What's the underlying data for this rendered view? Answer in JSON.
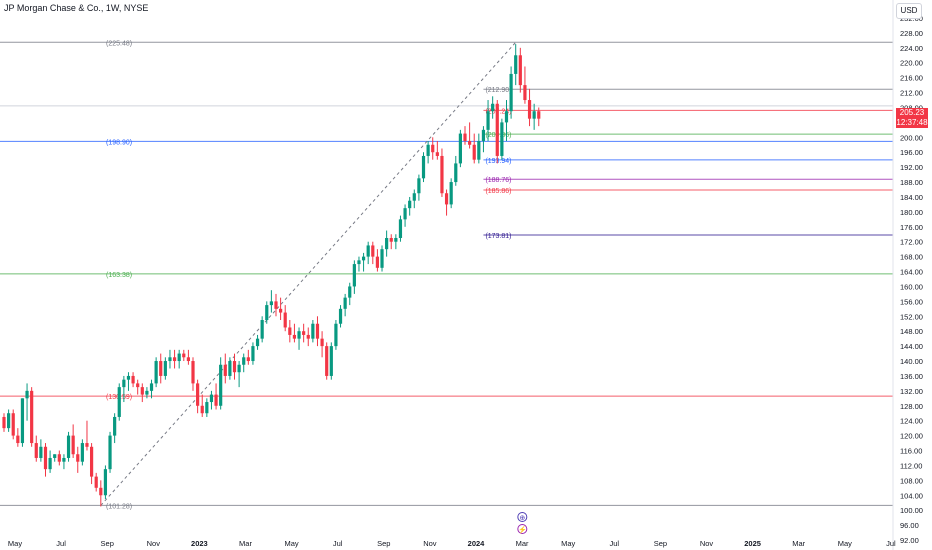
{
  "header": {
    "title": "JP Morgan Chase & Co., 1W, NYSE",
    "currency_button": "USD"
  },
  "last_price": {
    "value": "205.23",
    "countdown": "12:37:48",
    "price": 205.23,
    "color": "#f23645"
  },
  "colors": {
    "up": "#089981",
    "down": "#f23645",
    "grid": "#e0e3eb",
    "axis_text": "#131722",
    "event_icon": "#4f3fb5",
    "dividend_icon": "#9c27b0"
  },
  "event_markers": [
    {
      "icon": "earnings-icon",
      "glyph": "⊕"
    },
    {
      "icon": "dividend-icon",
      "glyph": "⚡"
    }
  ],
  "chart_data": {
    "type": "candlestick",
    "title": "JP Morgan Chase & Co., 1W, NYSE",
    "y_range": [
      96,
      232
    ],
    "price_ticks": [
      232,
      228,
      224,
      220,
      216,
      212,
      208,
      204,
      200,
      196,
      192,
      188,
      184,
      180,
      176,
      172,
      168,
      164,
      160,
      156,
      152,
      148,
      144,
      140,
      136,
      132,
      128,
      124,
      120,
      116,
      112,
      108,
      104,
      100,
      96,
      92
    ],
    "time_labels": [
      {
        "label": "May",
        "bold": false
      },
      {
        "label": "Jul",
        "bold": false
      },
      {
        "label": "Sep",
        "bold": false
      },
      {
        "label": "Nov",
        "bold": false
      },
      {
        "label": "2023",
        "bold": true
      },
      {
        "label": "Mar",
        "bold": false
      },
      {
        "label": "May",
        "bold": false
      },
      {
        "label": "Jul",
        "bold": false
      },
      {
        "label": "Sep",
        "bold": false
      },
      {
        "label": "Nov",
        "bold": false
      },
      {
        "label": "2024",
        "bold": true
      },
      {
        "label": "Mar",
        "bold": false
      },
      {
        "label": "May",
        "bold": false
      },
      {
        "label": "Jul",
        "bold": false
      },
      {
        "label": "Sep",
        "bold": false
      },
      {
        "label": "Nov",
        "bold": false
      },
      {
        "label": "2025",
        "bold": true
      },
      {
        "label": "Mar",
        "bold": false
      },
      {
        "label": "May",
        "bold": false
      },
      {
        "label": "Jul",
        "bold": false
      }
    ],
    "levels": [
      {
        "label": "(225.48)",
        "price": 225.48,
        "color": "#787b86",
        "span": "full"
      },
      {
        "label": "(198.90)",
        "price": 198.9,
        "color": "#2962ff",
        "span": "full"
      },
      {
        "label": "(163.38)",
        "price": 163.38,
        "color": "#4caf50",
        "span": "full"
      },
      {
        "label": "(130.59)",
        "price": 130.59,
        "color": "#f23645",
        "span": "full"
      },
      {
        "label": "(101.28)",
        "price": 101.28,
        "color": "#787b86",
        "span": "full"
      },
      {
        "label": "(212.90)",
        "price": 212.9,
        "color": "#787b86",
        "span": "right"
      },
      {
        "label": "(207.24)",
        "price": 207.24,
        "color": "#f23645",
        "span": "right"
      },
      {
        "label": "(200.86)",
        "price": 200.86,
        "color": "#4caf50",
        "span": "right"
      },
      {
        "label": "(193.94)",
        "price": 193.94,
        "color": "#2962ff",
        "span": "right"
      },
      {
        "label": "(188.76)",
        "price": 188.76,
        "color": "#9c27b0",
        "span": "right"
      },
      {
        "label": "(185.86)",
        "price": 185.86,
        "color": "#f23645",
        "span": "right"
      },
      {
        "label": "(173.81)",
        "price": 173.81,
        "color": "#311b92",
        "span": "right"
      }
    ],
    "trend_line": {
      "from": 101.28,
      "to": 225.48
    },
    "candles": [
      [
        125,
        126,
        121,
        122
      ],
      [
        122,
        127,
        121,
        126
      ],
      [
        126,
        127,
        119,
        120
      ],
      [
        120,
        122,
        117,
        118
      ],
      [
        118,
        130,
        117,
        130
      ],
      [
        130,
        134,
        124,
        132
      ],
      [
        132,
        133,
        117,
        118
      ],
      [
        118,
        120,
        113,
        114
      ],
      [
        114,
        119,
        113,
        117
      ],
      [
        117,
        118,
        109,
        111
      ],
      [
        111,
        116,
        110,
        114
      ],
      [
        114,
        115,
        113,
        115
      ],
      [
        115,
        116,
        112,
        113
      ],
      [
        113,
        115,
        111,
        114
      ],
      [
        114,
        121,
        113,
        120
      ],
      [
        120,
        123,
        114,
        115
      ],
      [
        115,
        117,
        110,
        113
      ],
      [
        113,
        119,
        112,
        118
      ],
      [
        118,
        124,
        116,
        117
      ],
      [
        117,
        118,
        107,
        109
      ],
      [
        109,
        110,
        105,
        106
      ],
      [
        106,
        108,
        101,
        104
      ],
      [
        104,
        112,
        103,
        111
      ],
      [
        111,
        121,
        110,
        120
      ],
      [
        120,
        126,
        118,
        125
      ],
      [
        125,
        134,
        124,
        133
      ],
      [
        133,
        136,
        129,
        135
      ],
      [
        135,
        137,
        132,
        136
      ],
      [
        136,
        137,
        133,
        134
      ],
      [
        134,
        135,
        131,
        133
      ],
      [
        133,
        134,
        129,
        131
      ],
      [
        131,
        133,
        130,
        132
      ],
      [
        132,
        135,
        130,
        134
      ],
      [
        134,
        141,
        133,
        140
      ],
      [
        140,
        142,
        134,
        136
      ],
      [
        136,
        141,
        135,
        140
      ],
      [
        140,
        143,
        138,
        141
      ],
      [
        141,
        143,
        138,
        140
      ],
      [
        140,
        143,
        138,
        142
      ],
      [
        142,
        143,
        140,
        141
      ],
      [
        141,
        143,
        139,
        140
      ],
      [
        140,
        141,
        132,
        134
      ],
      [
        134,
        135,
        126,
        128
      ],
      [
        128,
        131,
        125,
        126
      ],
      [
        126,
        130,
        125,
        129
      ],
      [
        129,
        132,
        127,
        131
      ],
      [
        131,
        134,
        127,
        128
      ],
      [
        128,
        141,
        127,
        139
      ],
      [
        139,
        142,
        134,
        136
      ],
      [
        136,
        141,
        135,
        140
      ],
      [
        140,
        142,
        135,
        137
      ],
      [
        137,
        140,
        133,
        139
      ],
      [
        139,
        142,
        137,
        141
      ],
      [
        141,
        143,
        139,
        140
      ],
      [
        140,
        145,
        139,
        144
      ],
      [
        144,
        147,
        143,
        146
      ],
      [
        146,
        152,
        145,
        151
      ],
      [
        151,
        156,
        150,
        155
      ],
      [
        155,
        159,
        153,
        156
      ],
      [
        156,
        158,
        152,
        154
      ],
      [
        154,
        157,
        151,
        153
      ],
      [
        153,
        155,
        148,
        149
      ],
      [
        149,
        151,
        145,
        147
      ],
      [
        147,
        150,
        145,
        146
      ],
      [
        146,
        149,
        143,
        148
      ],
      [
        148,
        150,
        145,
        147
      ],
      [
        147,
        149,
        144,
        146
      ],
      [
        146,
        151,
        145,
        150
      ],
      [
        150,
        152,
        144,
        146
      ],
      [
        146,
        148,
        141,
        144
      ],
      [
        144,
        145,
        135,
        136
      ],
      [
        136,
        145,
        135,
        144
      ],
      [
        144,
        151,
        143,
        150
      ],
      [
        150,
        155,
        149,
        154
      ],
      [
        154,
        158,
        152,
        157
      ],
      [
        157,
        161,
        155,
        160
      ],
      [
        160,
        167,
        158,
        166
      ],
      [
        166,
        168,
        164,
        167
      ],
      [
        167,
        169,
        164,
        168
      ],
      [
        168,
        172,
        166,
        171
      ],
      [
        171,
        172,
        166,
        168
      ],
      [
        168,
        170,
        164,
        165
      ],
      [
        165,
        171,
        164,
        170
      ],
      [
        170,
        175,
        168,
        173
      ],
      [
        173,
        174,
        170,
        172
      ],
      [
        172,
        174,
        170,
        173
      ],
      [
        173,
        179,
        172,
        178
      ],
      [
        178,
        182,
        176,
        181
      ],
      [
        181,
        184,
        179,
        183
      ],
      [
        183,
        186,
        181,
        185
      ],
      [
        185,
        190,
        183,
        189
      ],
      [
        189,
        196,
        188,
        195
      ],
      [
        195,
        199,
        193,
        198
      ],
      [
        198,
        200,
        194,
        196
      ],
      [
        196,
        199,
        194,
        195
      ],
      [
        195,
        197,
        184,
        185
      ],
      [
        185,
        186,
        179,
        182
      ],
      [
        182,
        189,
        181,
        188
      ],
      [
        188,
        195,
        187,
        193
      ],
      [
        193,
        202,
        192,
        201
      ],
      [
        201,
        203,
        198,
        199
      ],
      [
        199,
        204,
        197,
        198
      ],
      [
        198,
        201,
        193,
        194
      ],
      [
        194,
        201,
        193,
        199
      ],
      [
        199,
        203,
        196,
        202
      ],
      [
        202,
        210,
        199,
        207
      ],
      [
        207,
        211,
        205,
        209
      ],
      [
        209,
        210,
        193,
        195
      ],
      [
        195,
        205,
        194,
        204
      ],
      [
        204,
        210,
        199,
        207
      ],
      [
        207,
        219,
        205,
        217
      ],
      [
        217,
        225,
        214,
        222
      ],
      [
        222,
        224,
        212,
        214
      ],
      [
        214,
        219,
        209,
        210
      ],
      [
        210,
        213,
        203,
        205
      ],
      [
        205,
        209,
        202,
        207
      ],
      [
        207,
        208,
        203,
        205
      ]
    ]
  }
}
